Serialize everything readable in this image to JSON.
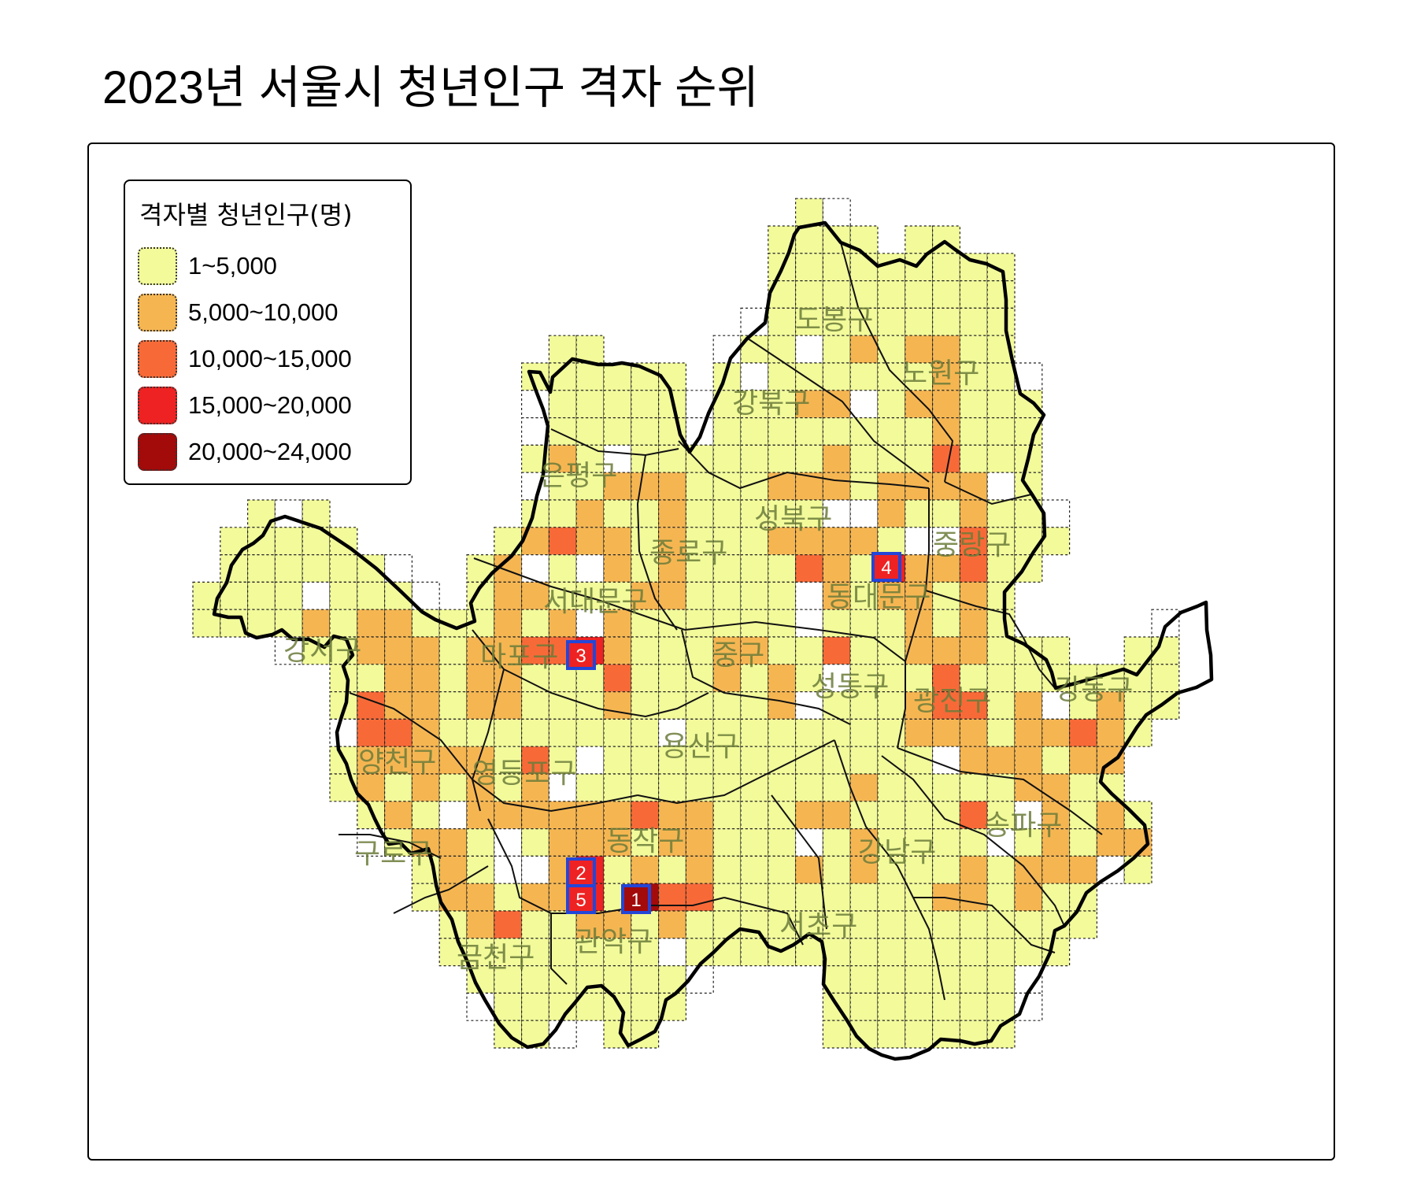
{
  "title": "2023년 서울시 청년인구 격자 순위",
  "legend": {
    "title": "격자별 청년인구(명)",
    "items": [
      {
        "label": "1~5,000",
        "color": "#f2fa9a"
      },
      {
        "label": "5,000~10,000",
        "color": "#f5b652"
      },
      {
        "label": "10,000~15,000",
        "color": "#f76a38"
      },
      {
        "label": "15,000~20,000",
        "color": "#ee2222"
      },
      {
        "label": "20,000~24,000",
        "color": "#a30a0a"
      }
    ]
  },
  "districts": [
    {
      "name": "도봉구"
    },
    {
      "name": "노원구"
    },
    {
      "name": "강북구"
    },
    {
      "name": "은평구"
    },
    {
      "name": "성북구"
    },
    {
      "name": "종로구"
    },
    {
      "name": "중랑구"
    },
    {
      "name": "동대문구"
    },
    {
      "name": "서대문구"
    },
    {
      "name": "강서구"
    },
    {
      "name": "마포구"
    },
    {
      "name": "중구"
    },
    {
      "name": "성동구"
    },
    {
      "name": "광진구"
    },
    {
      "name": "강동구"
    },
    {
      "name": "양천구"
    },
    {
      "name": "영등포구"
    },
    {
      "name": "용산구"
    },
    {
      "name": "송파구"
    },
    {
      "name": "구로구"
    },
    {
      "name": "동작구"
    },
    {
      "name": "강남구"
    },
    {
      "name": "금천구"
    },
    {
      "name": "관악구"
    },
    {
      "name": "서초구"
    }
  ],
  "ranks": [
    {
      "label": "1",
      "district": "관악구",
      "class": 4
    },
    {
      "label": "2",
      "district": "동작구",
      "class": 3
    },
    {
      "label": "3",
      "district": "마포구",
      "class": 3
    },
    {
      "label": "4",
      "district": "동대문구",
      "class": 3
    },
    {
      "label": "5",
      "district": "관악구",
      "class": 3
    }
  ]
}
